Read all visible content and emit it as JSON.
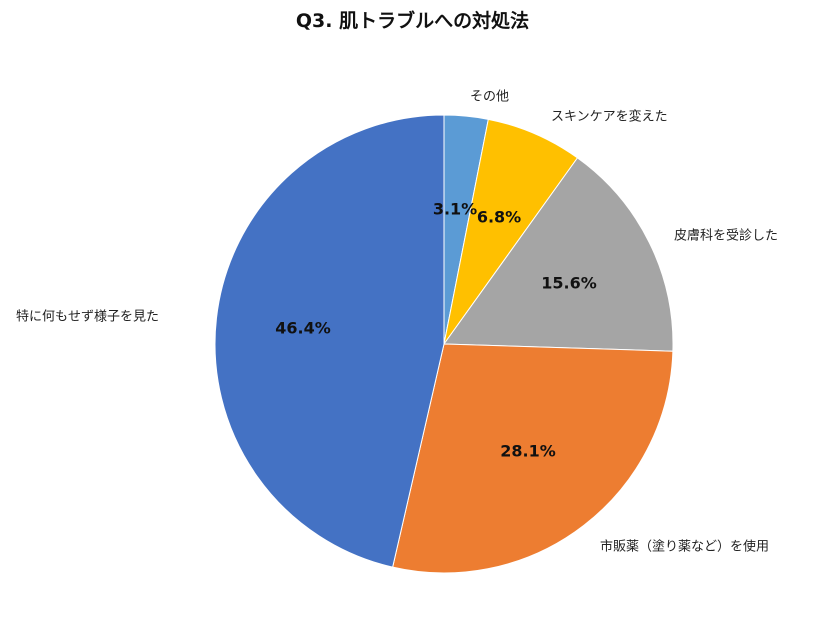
{
  "chart_data": {
    "type": "pie",
    "title": "Q3. 肌トラブルへの対処法",
    "categories": [
      "その他",
      "スキンケアを変えた",
      "皮膚科を受診した",
      "市販薬（塗り薬など）を使用",
      "特に何もせず様子を見た"
    ],
    "values": [
      3.1,
      6.8,
      15.6,
      28.1,
      46.4
    ],
    "value_labels": [
      "3.1%",
      "6.8%",
      "15.6%",
      "28.1%",
      "46.4%"
    ],
    "colors": [
      "#5b9bd5",
      "#ffc000",
      "#a5a5a5",
      "#ed7d31",
      "#4472c4"
    ],
    "start": "12 o'clock, clockwise",
    "legend": "none (category labels outside slices)"
  }
}
